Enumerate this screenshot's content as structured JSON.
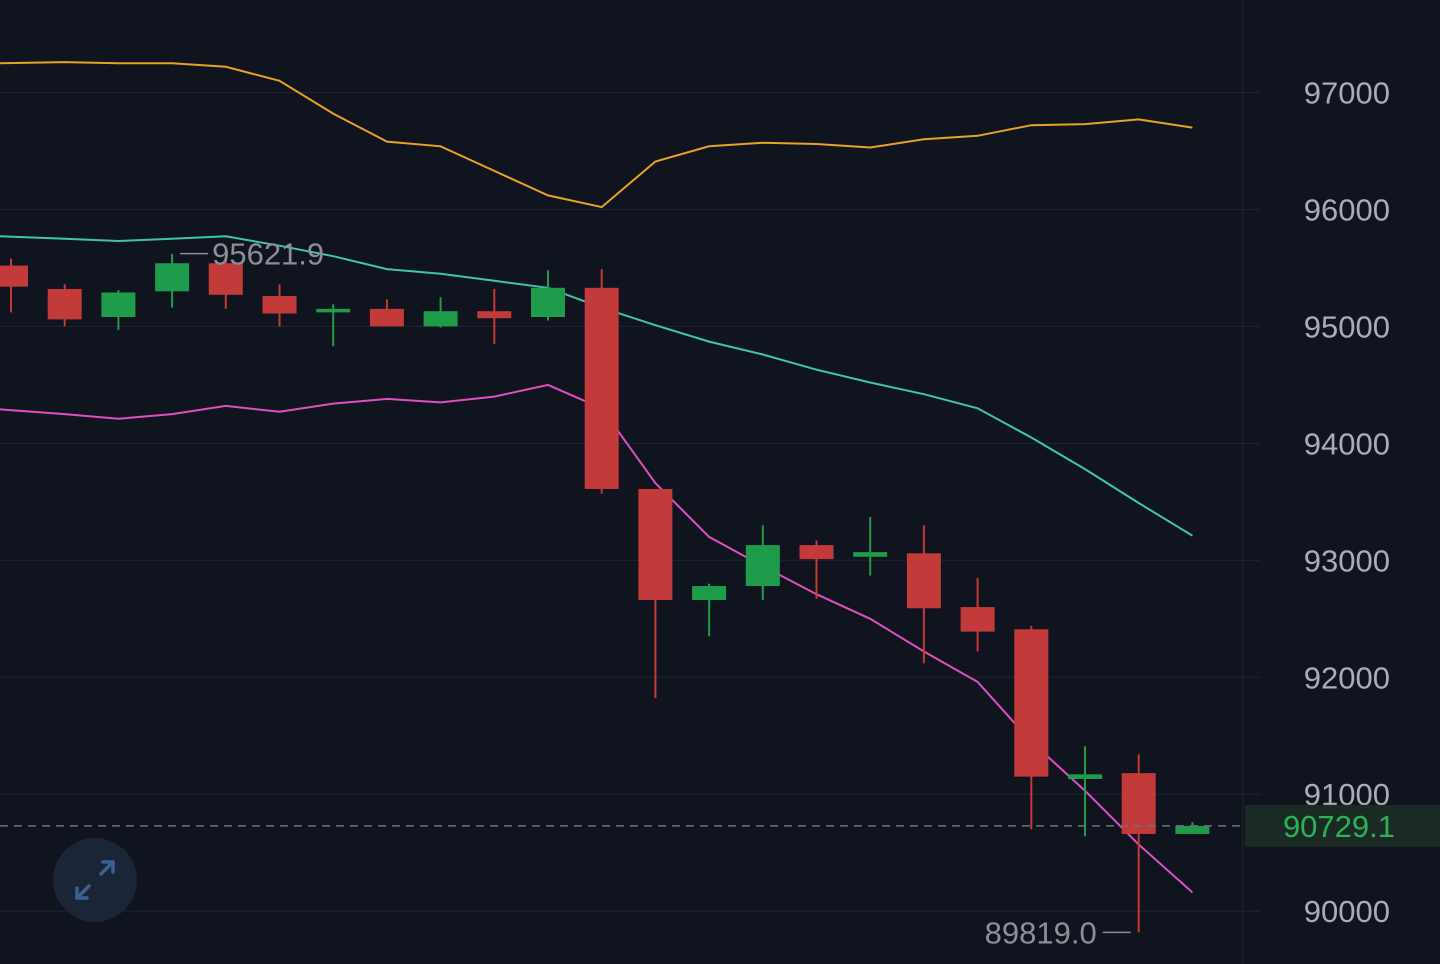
{
  "chart_data": {
    "type": "candlestick",
    "y_axis": {
      "ticks": [
        90000,
        91000,
        92000,
        93000,
        94000,
        95000,
        96000,
        97000
      ],
      "tick_labels": [
        "90000",
        "91000",
        "92000",
        "93000",
        "94000",
        "95000",
        "96000",
        "97000"
      ],
      "range": [
        89560,
        97720
      ],
      "position": "right"
    },
    "grid": true,
    "candles": [
      {
        "open": 95520,
        "high": 95580,
        "low": 95120,
        "close": 95340
      },
      {
        "open": 95320,
        "high": 95360,
        "low": 95000,
        "close": 95060
      },
      {
        "open": 95080,
        "high": 95310,
        "low": 94970,
        "close": 95290
      },
      {
        "open": 95300,
        "high": 95620,
        "low": 95160,
        "close": 95540
      },
      {
        "open": 95540,
        "high": 95620,
        "low": 95150,
        "close": 95270
      },
      {
        "open": 95260,
        "high": 95360,
        "low": 95000,
        "close": 95110
      },
      {
        "open": 95120,
        "high": 95190,
        "low": 94830,
        "close": 95150
      },
      {
        "open": 95150,
        "high": 95230,
        "low": 95000,
        "close": 95000
      },
      {
        "open": 95000,
        "high": 95250,
        "low": 94990,
        "close": 95130
      },
      {
        "open": 95130,
        "high": 95320,
        "low": 94850,
        "close": 95070
      },
      {
        "open": 95080,
        "high": 95480,
        "low": 95050,
        "close": 95330
      },
      {
        "open": 95330,
        "high": 95490,
        "low": 93570,
        "close": 93610
      },
      {
        "open": 93610,
        "high": 93600,
        "low": 91820,
        "close": 92660
      },
      {
        "open": 92660,
        "high": 92800,
        "low": 92350,
        "close": 92780
      },
      {
        "open": 92780,
        "high": 93300,
        "low": 92660,
        "close": 93130
      },
      {
        "open": 93130,
        "high": 93170,
        "low": 92670,
        "close": 93010
      },
      {
        "open": 93030,
        "high": 93370,
        "low": 92870,
        "close": 93070
      },
      {
        "open": 93060,
        "high": 93300,
        "low": 92120,
        "close": 92590
      },
      {
        "open": 92600,
        "high": 92850,
        "low": 92220,
        "close": 92390
      },
      {
        "open": 92410,
        "high": 92440,
        "low": 90700,
        "close": 91150
      },
      {
        "open": 91130,
        "high": 91410,
        "low": 90640,
        "close": 91170
      },
      {
        "open": 91180,
        "high": 91340,
        "low": 89819,
        "close": 90660
      },
      {
        "open": 90660,
        "high": 90760,
        "low": 90660,
        "close": 90729.1
      }
    ],
    "bollinger_upper": [
      97250,
      97260,
      97250,
      97250,
      97220,
      97100,
      96820,
      96580,
      96540,
      96330,
      96120,
      96020,
      96410,
      96540,
      96570,
      96560,
      96530,
      96600,
      96630,
      96720,
      96730,
      96770,
      96700
    ],
    "bollinger_middle": [
      95770,
      95750,
      95730,
      95750,
      95770,
      95690,
      95600,
      95490,
      95450,
      95390,
      95330,
      95160,
      95010,
      94870,
      94760,
      94630,
      94520,
      94420,
      94300,
      94050,
      93780,
      93490,
      93210
    ],
    "bollinger_lower": [
      94290,
      94250,
      94210,
      94250,
      94320,
      94270,
      94340,
      94380,
      94350,
      94400,
      94500,
      94300,
      93660,
      93200,
      92950,
      92710,
      92500,
      92220,
      91960,
      91450,
      91030,
      90570,
      90160
    ],
    "current_price": 90729.1,
    "current_price_label": "90729.1",
    "high_marker": {
      "value": 95621.9,
      "label": "95621.9",
      "candle_index": 3
    },
    "low_marker": {
      "value": 89819.0,
      "label": "89819.0",
      "candle_index": 21
    },
    "colors": {
      "background": "#0f141e",
      "up": "#1f9b4c",
      "down": "#c23a3a",
      "bollinger_upper": "#e9a227",
      "bollinger_middle": "#3cc7ad",
      "bollinger_lower": "#e04fbe",
      "grid": "#1e2532",
      "axis_text": "#a9adb6",
      "price_tag_bg": "#1b2a22",
      "price_tag_text": "#2ab15a"
    }
  },
  "controls": {
    "expand_icon": "expand-arrows-icon"
  }
}
